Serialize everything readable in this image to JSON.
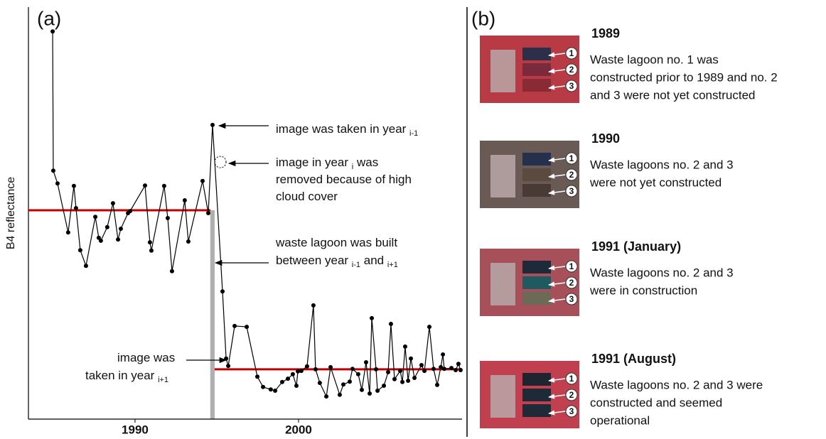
{
  "chart_data": {
    "type": "line",
    "panel_label": "(a)",
    "ylabel": "B4 reflectance",
    "xlim": [
      1983.48,
      2010
    ],
    "xticks": [
      1990,
      2000
    ],
    "ylim": [
      0,
      100
    ],
    "series": [
      {
        "color": "#000000",
        "x": [
          1984.96,
          1985.0,
          1985.26,
          1985.91,
          1986.26,
          1986.39,
          1986.65,
          1987.0,
          1987.57,
          1987.78,
          1987.91,
          1988.3,
          1988.65,
          1988.96,
          1989.13,
          1989.57,
          1989.7,
          1990.61,
          1990.91,
          1991.0,
          1991.78,
          1992.0,
          1992.26,
          1993.04,
          1993.26,
          1994.13,
          1994.48,
          1994.74,
          1995.35,
          1995.57,
          1995.7,
          1996.09,
          1996.83,
          1997.48,
          1997.83,
          1998.3,
          1998.57,
          1999.0,
          1999.35,
          1999.65,
          1999.87,
          1999.96,
          2000.17,
          2000.52,
          2000.91,
          2001.04,
          2001.3,
          2001.7,
          2001.96,
          2002.52,
          2002.74,
          2003.13,
          2003.3,
          2003.65,
          2003.87,
          2004.13,
          2004.35,
          2004.48,
          2004.74,
          2004.83,
          2005.22,
          2005.48,
          2005.65,
          2005.87,
          2006.22,
          2006.35,
          2006.52,
          2006.7,
          2006.87,
          2007.09,
          2007.52,
          2007.7,
          2008.0,
          2008.26,
          2008.48,
          2008.7,
          2008.83,
          2008.91,
          2009.35,
          2009.61,
          2009.78,
          2009.91
        ],
        "values": [
          94.1,
          60.3,
          57.2,
          45.3,
          56.6,
          51.2,
          41.0,
          37.2,
          49.1,
          44.0,
          43.3,
          46.6,
          52.4,
          43.6,
          46.2,
          50.0,
          50.5,
          56.7,
          42.9,
          40.9,
          56.6,
          48.8,
          35.9,
          53.1,
          43.1,
          57.8,
          50.0,
          71.4,
          31.0,
          14.7,
          12.9,
          22.6,
          22.4,
          10.3,
          7.8,
          7.2,
          6.9,
          9.0,
          9.8,
          10.9,
          8.1,
          11.6,
          11.7,
          12.8,
          27.6,
          12.1,
          8.8,
          5.5,
          12.6,
          5.9,
          8.4,
          9.1,
          12.2,
          10.9,
          7.1,
          13.8,
          6.2,
          24.5,
          12.1,
          6.9,
          8.1,
          11.4,
          23.1,
          9.7,
          11.7,
          9.0,
          17.6,
          9.3,
          14.7,
          10.0,
          13.1,
          11.7,
          22.4,
          12.2,
          8.3,
          12.6,
          15.7,
          12.2,
          12.4,
          11.9,
          13.4,
          11.9
        ]
      }
    ],
    "reference_lines": [
      {
        "x": [
          1983.48,
          1994.61
        ],
        "y": 50.7,
        "color": "#c00000"
      },
      {
        "x": [
          1994.87,
          2010
        ],
        "y": 12.1,
        "color": "#c00000"
      }
    ],
    "highlight": {
      "x": [
        1994.6,
        1994.87
      ],
      "y": 50.7,
      "color": "#b0b0b0"
    },
    "removed_point": {
      "x": 1995.22,
      "y": 62.4
    },
    "annotations": [
      {
        "lines": [
          [
            "image was taken in year ",
            "i-1"
          ]
        ]
      },
      {
        "lines": [
          [
            "image in year ",
            "i",
            " was"
          ],
          [
            "removed because of high"
          ],
          [
            "cloud cover"
          ]
        ]
      },
      {
        "lines": [
          [
            "waste lagoon was built"
          ],
          [
            "between year ",
            "i-1",
            " and ",
            "i+1"
          ]
        ]
      },
      {
        "lines": [
          [
            "image was"
          ],
          [
            "taken in year ",
            "i+1"
          ]
        ]
      }
    ]
  },
  "panel_b": {
    "letter": "(b)",
    "markers": [
      "1",
      "2",
      "3"
    ],
    "entries": [
      {
        "year": "1989",
        "lines": [
          "Waste lagoon no. 1 was",
          "constructed prior to 1989 and no. 2",
          "and 3 were not yet constructed"
        ]
      },
      {
        "year": "1990",
        "lines": [
          "Waste lagoons no. 2 and 3",
          "were not yet constructed"
        ]
      },
      {
        "year": "1991 (January)",
        "lines": [
          "Waste lagoons no. 2 and 3",
          "were in construction"
        ]
      },
      {
        "year": "1991 (August)",
        "lines": [
          "Waste lagoons no. 2 and 3 were",
          "constructed and seemed",
          "operational"
        ]
      }
    ]
  }
}
